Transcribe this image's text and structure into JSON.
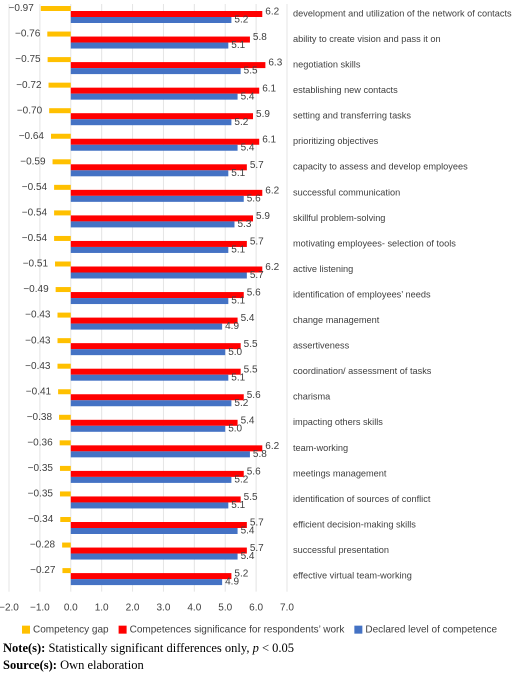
{
  "chart_data": {
    "type": "bar",
    "orientation": "horizontal",
    "categories": [
      "development and utilization of the network of contacts",
      "ability to create vision and pass it on",
      "negotiation skills",
      "establishing new contacts",
      "setting and transferring tasks",
      "prioritizing objectives",
      "capacity to assess and develop employees",
      "successful communication",
      "skillful problem-solving",
      "motivating employees- selection of tools",
      "active listening",
      "identification of employees’ needs",
      "change management",
      "assertiveness",
      "coordination/ assessment of tasks",
      "charisma",
      "impacting others skills",
      "team-working",
      "meetings management",
      "identification of sources of conflict",
      "efficient decision-making skills",
      "successful presentation",
      "effective virtual team-working"
    ],
    "series": [
      {
        "name": "Competency gap",
        "color": "#ffc000",
        "values": [
          -0.97,
          -0.76,
          -0.75,
          -0.72,
          -0.7,
          -0.64,
          -0.59,
          -0.54,
          -0.54,
          -0.54,
          -0.51,
          -0.49,
          -0.43,
          -0.43,
          -0.43,
          -0.41,
          -0.38,
          -0.36,
          -0.35,
          -0.35,
          -0.34,
          -0.28,
          -0.27
        ],
        "value_labels": [
          "−0.97",
          "−0.76",
          "−0.75",
          "−0.72",
          "−0.70",
          "−0.64",
          "−0.59",
          "−0.54",
          "−0.54",
          "−0.54",
          "−0.51",
          "−0.49",
          "−0.43",
          "−0.43",
          "−0.43",
          "−0.41",
          "−0.38",
          "−0.36",
          "−0.35",
          "−0.35",
          "−0.34",
          "−0.28",
          "−0.27"
        ]
      },
      {
        "name": "Competences significance for respondents’ work",
        "color": "#ff0000",
        "values": [
          6.2,
          5.8,
          6.3,
          6.1,
          5.9,
          6.1,
          5.7,
          6.2,
          5.9,
          5.7,
          6.2,
          5.6,
          5.4,
          5.5,
          5.5,
          5.6,
          5.4,
          6.2,
          5.6,
          5.5,
          5.7,
          5.7,
          5.2
        ],
        "value_labels": [
          "6.2",
          "5.8",
          "6.3",
          "6.1",
          "5.9",
          "6.1",
          "5.7",
          "6.2",
          "5.9",
          "5.7",
          "6.2",
          "5.6",
          "5.4",
          "5.5",
          "5.5",
          "5.6",
          "5.4",
          "6.2",
          "5.6",
          "5.5",
          "5.7",
          "5.7",
          "5.2"
        ]
      },
      {
        "name": "Declared level of competence",
        "color": "#4472c4",
        "values": [
          5.2,
          5.1,
          5.5,
          5.4,
          5.2,
          5.4,
          5.1,
          5.6,
          5.3,
          5.1,
          5.7,
          5.1,
          4.9,
          5.0,
          5.1,
          5.2,
          5.0,
          5.8,
          5.2,
          5.1,
          5.4,
          5.4,
          4.9
        ],
        "value_labels": [
          "5.2",
          "5.1",
          "5.5",
          "5.4",
          "5.2",
          "5.4",
          "5.1",
          "5.6",
          "5.3",
          "5.1",
          "5.7",
          "5.1",
          "4.9",
          "5.0",
          "5.1",
          "5.2",
          "5.0",
          "5.8",
          "5.2",
          "5.1",
          "5.4",
          "5.4",
          "4.9"
        ]
      }
    ],
    "xlim": [
      -2,
      7
    ],
    "xticks": [
      {
        "value": -2,
        "label": "−2.0"
      },
      {
        "value": -1,
        "label": "−1.0"
      },
      {
        "value": 0,
        "label": "0.0"
      },
      {
        "value": 1,
        "label": "1.0"
      },
      {
        "value": 2,
        "label": "2.0"
      },
      {
        "value": 3,
        "label": "3.0"
      },
      {
        "value": 4,
        "label": "4.0"
      },
      {
        "value": 5,
        "label": "5.0"
      },
      {
        "value": 6,
        "label": "6.0"
      },
      {
        "value": 7,
        "label": "7.0"
      }
    ],
    "legend": "bottom"
  },
  "note": {
    "label": "Note(s):",
    "text": "Statistically significant differences only,",
    "symbol": "p",
    "condition": "< 0.05"
  },
  "source": {
    "label": "Source(s):",
    "text": "Own elaboration"
  }
}
